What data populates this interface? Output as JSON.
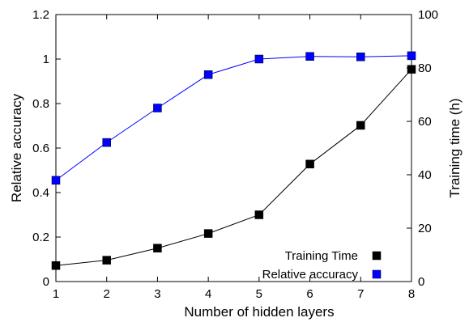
{
  "chart_data": {
    "type": "line",
    "xlabel": "Number of hidden layers",
    "ylabel": "Relative accuracy",
    "y2label": "Training time (h)",
    "x": [
      1,
      2,
      3,
      4,
      5,
      6,
      7,
      8
    ],
    "xlim": [
      1,
      8
    ],
    "ylim": [
      0,
      1.2
    ],
    "y2lim": [
      0,
      100
    ],
    "xticks": [
      "1",
      "2",
      "3",
      "4",
      "5",
      "6",
      "7",
      "8"
    ],
    "yticks": [
      "0",
      "0.2",
      "0.4",
      "0.6",
      "0.8",
      "1",
      "1.2"
    ],
    "y2ticks": [
      "0",
      "20",
      "40",
      "60",
      "80",
      "100"
    ],
    "grid": false,
    "legend_position": "bottom-right",
    "series": [
      {
        "name": "Training Time",
        "axis": "right",
        "color": "#000000",
        "marker": "square",
        "values": [
          6,
          8,
          12.5,
          18,
          25,
          44,
          58.5,
          79.5
        ]
      },
      {
        "name": "Relative accuracy",
        "axis": "left",
        "color": "#0000ff",
        "marker": "square",
        "values": [
          0.455,
          0.625,
          0.78,
          0.93,
          1.0,
          1.012,
          1.01,
          1.015
        ]
      }
    ]
  }
}
